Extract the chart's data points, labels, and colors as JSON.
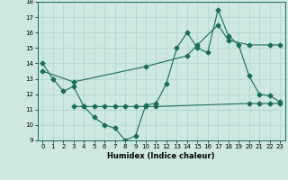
{
  "xlabel": "Humidex (Indice chaleur)",
  "xlim": [
    -0.5,
    23.5
  ],
  "ylim": [
    9,
    18
  ],
  "yticks": [
    9,
    10,
    11,
    12,
    13,
    14,
    15,
    16,
    17,
    18
  ],
  "xticks": [
    0,
    1,
    2,
    3,
    4,
    5,
    6,
    7,
    8,
    9,
    10,
    11,
    12,
    13,
    14,
    15,
    16,
    17,
    18,
    19,
    20,
    21,
    22,
    23
  ],
  "bg_color": "#cce8e0",
  "line_color": "#1a6b5a",
  "grid_color": "#aed4cc",
  "line1_x": [
    0,
    1,
    2,
    3,
    4,
    5,
    6,
    7,
    8,
    9,
    10,
    11,
    12,
    13,
    14,
    15,
    16,
    17,
    18,
    19,
    20,
    21,
    22,
    23
  ],
  "line1_y": [
    14.0,
    13.0,
    12.2,
    12.5,
    11.2,
    10.5,
    10.0,
    9.8,
    9.0,
    9.3,
    11.3,
    11.4,
    12.7,
    15.0,
    16.0,
    15.0,
    14.7,
    17.5,
    15.8,
    15.2,
    13.2,
    12.0,
    11.9,
    11.5
  ],
  "line2_x": [
    3,
    4,
    5,
    6,
    7,
    8,
    9,
    10,
    11,
    20,
    21,
    22,
    23
  ],
  "line2_y": [
    11.2,
    11.2,
    11.2,
    11.2,
    11.2,
    11.2,
    11.2,
    11.2,
    11.2,
    11.4,
    11.4,
    11.4,
    11.4
  ],
  "line3_x": [
    0,
    3,
    10,
    14,
    15,
    17,
    18,
    20,
    22,
    23
  ],
  "line3_y": [
    13.5,
    12.8,
    13.8,
    14.5,
    15.2,
    16.5,
    15.5,
    15.2,
    15.2,
    15.2
  ]
}
